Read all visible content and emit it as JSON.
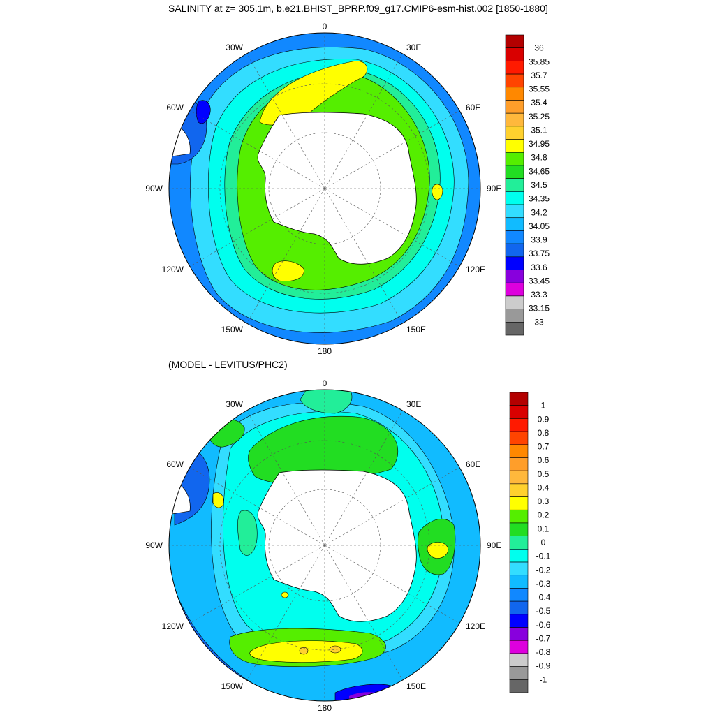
{
  "title_top": "SALINITY at z= 305.1m, b.e21.BHIST_BPRP.f09_g17.CMIP6-esm-hist.002 [1850-1880]",
  "title_bottom": "(MODEL - LEVITUS/PHC2)",
  "lon_labels": [
    "0",
    "30E",
    "60E",
    "90E",
    "120E",
    "150E",
    "180",
    "150W",
    "120W",
    "90W",
    "60W",
    "30W"
  ],
  "colorbar_top": {
    "labels": [
      "36",
      "35.85",
      "35.7",
      "35.55",
      "35.4",
      "35.25",
      "35.1",
      "34.95",
      "34.8",
      "34.65",
      "34.5",
      "34.35",
      "34.2",
      "34.05",
      "33.9",
      "33.75",
      "33.6",
      "33.45",
      "33.3",
      "33.15",
      "33"
    ],
    "colors": [
      "#b30000",
      "#d90000",
      "#ff1a00",
      "#ff4400",
      "#ff8800",
      "#ff9e2a",
      "#ffb83c",
      "#ffd12e",
      "#ffff00",
      "#55ee00",
      "#22dd22",
      "#22ee99",
      "#00ffee",
      "#33ddff",
      "#11bbff",
      "#1188ff",
      "#1166ee",
      "#0000ff",
      "#8800dd",
      "#dd00dd",
      "#cccccc",
      "#999999",
      "#666666"
    ]
  },
  "colorbar_bottom": {
    "labels": [
      "1",
      "0.9",
      "0.8",
      "0.7",
      "0.6",
      "0.5",
      "0.4",
      "0.3",
      "0.2",
      "0.1",
      "0",
      "-0.1",
      "-0.2",
      "-0.3",
      "-0.4",
      "-0.5",
      "-0.6",
      "-0.7",
      "-0.8",
      "-0.9",
      "-1"
    ],
    "colors": [
      "#b30000",
      "#d90000",
      "#ff1a00",
      "#ff4400",
      "#ff8800",
      "#ff9e2a",
      "#ffb83c",
      "#ffd12e",
      "#ffff00",
      "#55ee00",
      "#22dd22",
      "#22ee99",
      "#00ffee",
      "#33ddff",
      "#11bbff",
      "#1188ff",
      "#1166ee",
      "#0000ff",
      "#8800dd",
      "#dd00dd",
      "#cccccc",
      "#999999",
      "#666666"
    ]
  }
}
